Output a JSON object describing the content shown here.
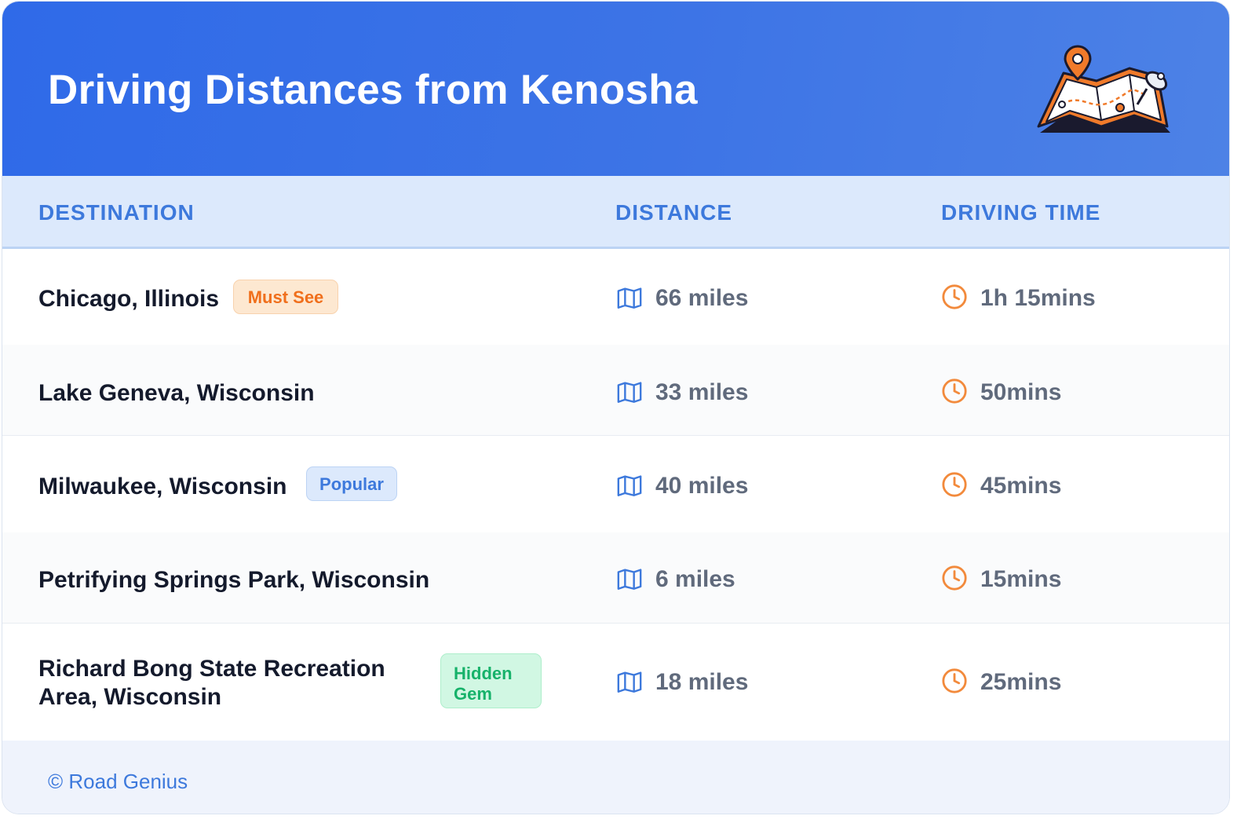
{
  "header": {
    "title": "Driving Distances from Kenosha",
    "icon": "map-with-pins-icon"
  },
  "table": {
    "columns": [
      "DESTINATION",
      "DISTANCE",
      "DRIVING TIME"
    ],
    "rows": [
      {
        "destination": "Chicago, Illinois",
        "badge": "Must See",
        "distance": "66 miles",
        "time": "1h 15mins"
      },
      {
        "destination": "Lake Geneva, Wisconsin",
        "badge": "",
        "distance": "33 miles",
        "time": "50mins"
      },
      {
        "destination": "Milwaukee, Wisconsin",
        "badge": "Popular",
        "distance": "40 miles",
        "time": "45mins"
      },
      {
        "destination": "Petrifying Springs Park, Wisconsin",
        "badge": "",
        "distance": "6 miles",
        "time": "15mins"
      },
      {
        "destination": "Richard Bong State Recreation Area, Wisconsin",
        "badge": "Hidden Gem",
        "distance": "18 miles",
        "time": "25mins"
      }
    ]
  },
  "footer": {
    "credit": "© Road Genius"
  },
  "colors": {
    "header_gradient_start": "#2f6ae8",
    "header_gradient_end": "#4d82e6",
    "accent_blue": "#3d79dc",
    "accent_orange": "#f28a3c",
    "badge_must_see": "#f06f1c",
    "badge_popular": "#3d79dc",
    "badge_hidden_gem": "#16b26a"
  }
}
